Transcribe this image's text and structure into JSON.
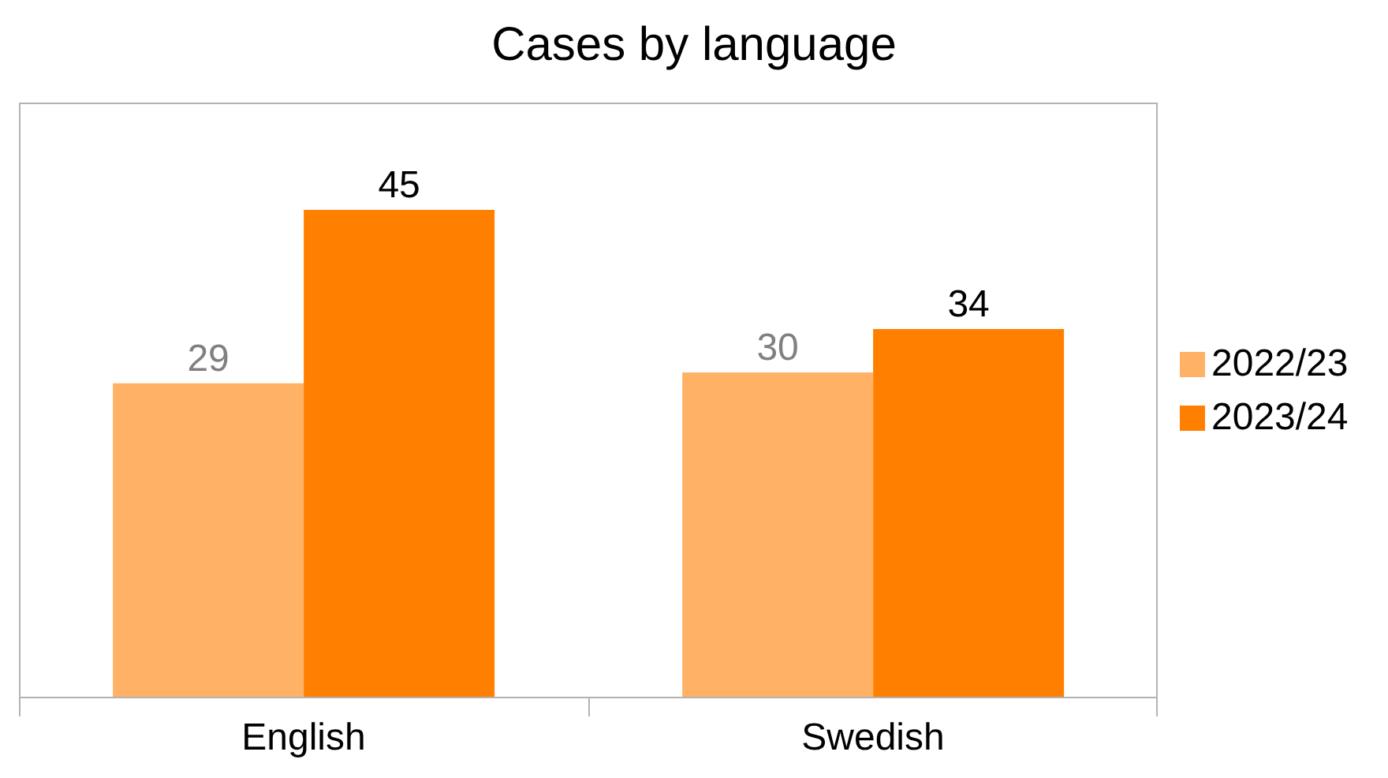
{
  "chart_data": {
    "type": "bar",
    "title": "Cases by language",
    "categories": [
      "English",
      "Swedish"
    ],
    "series": [
      {
        "name": "2022/23",
        "color": "#ffb266",
        "values": [
          29,
          30
        ]
      },
      {
        "name": "2023/24",
        "color": "#ff8000",
        "values": [
          45,
          34
        ]
      }
    ],
    "data_labels": true,
    "legend": "right"
  }
}
